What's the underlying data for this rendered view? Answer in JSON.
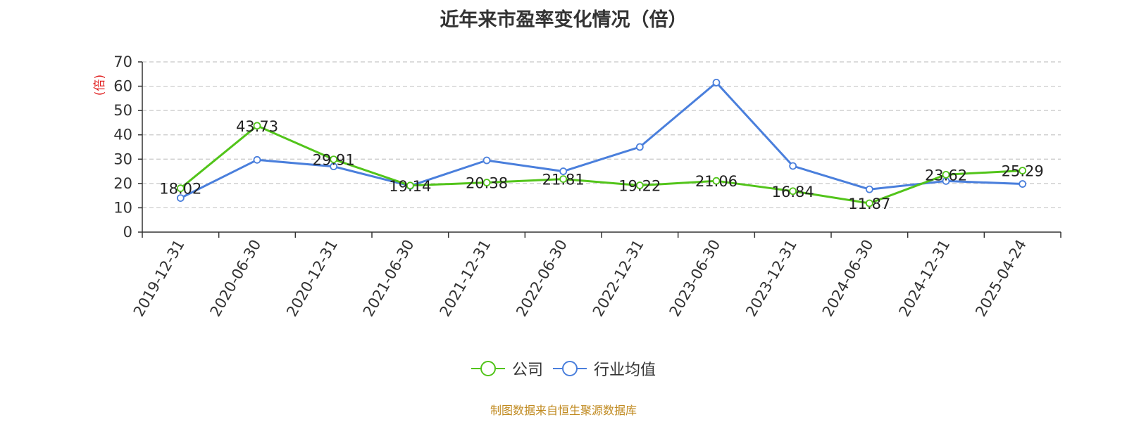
{
  "chart_data": {
    "type": "line",
    "title": "近年来市盈率变化情况（倍）",
    "ylabel": "(倍)",
    "xlabel": "",
    "ylim": [
      0,
      70
    ],
    "yticks": [
      0,
      10,
      20,
      30,
      40,
      50,
      60,
      70
    ],
    "grid": true,
    "categories": [
      "2019-12-31",
      "2020-06-30",
      "2020-12-31",
      "2021-06-30",
      "2021-12-31",
      "2022-06-30",
      "2022-12-31",
      "2023-06-30",
      "2023-12-31",
      "2024-06-30",
      "2024-12-31",
      "2025-04-24"
    ],
    "series": [
      {
        "name": "公司",
        "color": "#52c41a",
        "values": [
          18.02,
          43.73,
          29.91,
          19.14,
          20.38,
          21.81,
          19.22,
          21.06,
          16.84,
          11.87,
          23.62,
          25.29
        ],
        "data_labels": [
          "18.02",
          "43.73",
          "29.91",
          "19.14",
          "20.38",
          "21.81",
          "19.22",
          "21.06",
          "16.84",
          "11.87",
          "23.62",
          "25.29"
        ]
      },
      {
        "name": "行业均值",
        "color": "#4a7fdc",
        "values": [
          14.0,
          29.7,
          27.0,
          19.0,
          29.5,
          25.0,
          35.0,
          61.5,
          27.2,
          17.6,
          21.0,
          19.8
        ]
      }
    ],
    "legend_position": "bottom",
    "source": "制图数据来自恒生聚源数据库"
  }
}
